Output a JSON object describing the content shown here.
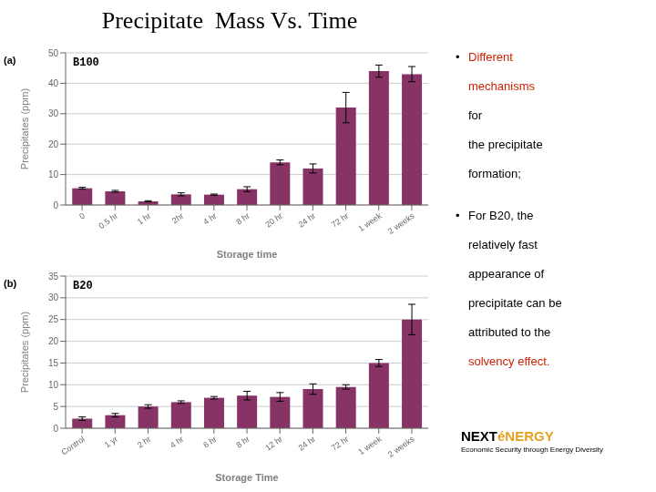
{
  "title": "Precipitate  Mass Vs. Time",
  "chart_data": [
    {
      "type": "bar",
      "title": "B100",
      "annotations": [
        "(a)"
      ],
      "xlabel": "Storage time",
      "ylabel": "Precipitates (ppm)",
      "categories": [
        "0",
        "0.5 hr",
        "1 hr",
        "2hr",
        "4 hr",
        "8 hr",
        "20 hr",
        "24 hr",
        "72 hr",
        "1 week",
        "2 weeks"
      ],
      "values": [
        5.5,
        4.5,
        1.2,
        3.5,
        3.4,
        5.2,
        14.0,
        12.0,
        32.0,
        44.0,
        43.0
      ],
      "errors": [
        0.3,
        0.3,
        0.2,
        0.5,
        0.2,
        0.8,
        0.8,
        1.5,
        5.0,
        2.0,
        2.5
      ],
      "color": "#883366",
      "ylim": [
        0,
        50
      ],
      "yticks": [
        0,
        10,
        20,
        30,
        40,
        50
      ],
      "grid": true
    },
    {
      "type": "bar",
      "title": "B20",
      "annotations": [
        "(b)"
      ],
      "xlabel": "Storage Time",
      "ylabel": "Precipitates (ppm)",
      "categories": [
        "Control",
        "1 yr",
        "2 hr",
        "4 hr",
        "6 hr",
        "8 hr",
        "12 hr",
        "24 hr",
        "72 hr",
        "1 week",
        "2 weeks"
      ],
      "values": [
        2.2,
        3.0,
        5.0,
        6.0,
        7.0,
        7.5,
        7.2,
        9.0,
        9.5,
        15.0,
        25.0
      ],
      "errors": [
        0.4,
        0.4,
        0.4,
        0.3,
        0.3,
        1.0,
        1.0,
        1.2,
        0.5,
        0.8,
        3.5
      ],
      "color": "#883366",
      "ylim": [
        0,
        35
      ],
      "yticks": [
        0,
        5,
        10,
        15,
        20,
        25,
        30,
        35
      ],
      "grid": true
    }
  ],
  "annotations": [
    [
      {
        "text": "•"
      },
      {
        "text": "Different",
        "color": "#cc2200"
      },
      {
        "text": "mechanisms",
        "color": "#cc2200"
      },
      {
        "text": "for"
      },
      {
        "text": "the precipitate"
      },
      {
        "text": "formation;"
      }
    ],
    [
      {
        "text": "•"
      },
      {
        "text": "For B20, the"
      },
      {
        "text": "relatively fast"
      },
      {
        "text": "appearance of"
      },
      {
        "text": "precipitate can be"
      },
      {
        "text": "attributed to the"
      },
      {
        "text": "solvency effect.",
        "color": "#cc2200"
      }
    ]
  ],
  "logo": [
    {
      "text": "NEXT"
    },
    {
      "text": "éNERGY",
      "color": "#e8a020"
    },
    {
      "text": "Economic Security through Energy Diversity"
    }
  ]
}
